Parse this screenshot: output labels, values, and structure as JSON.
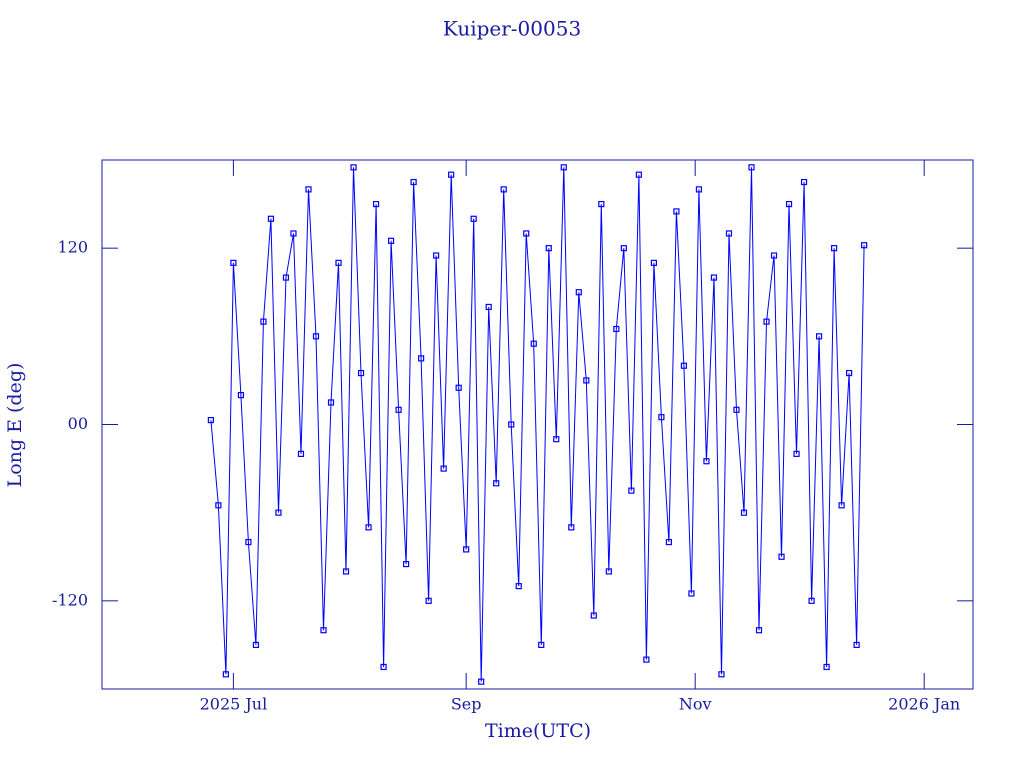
{
  "chart_data": {
    "type": "line",
    "title": "Kuiper-00053",
    "x_label": "Time(UTC)",
    "y_label": "Long E (deg)",
    "xlim": [
      147,
      379
    ],
    "xticks": [
      {
        "value": 182,
        "label": "2025 Jul"
      },
      {
        "value": 244,
        "label": "Sep"
      },
      {
        "value": 305,
        "label": "Nov"
      },
      {
        "value": 366,
        "label": "2026 Jan"
      }
    ],
    "ylim": [
      -180,
      180
    ],
    "yticks": [
      -120,
      {
        "value": 0,
        "label": "00"
      },
      120
    ],
    "x": [
      176,
      178,
      180,
      182,
      184,
      186,
      188,
      190,
      192,
      194,
      196,
      198,
      200,
      202,
      204,
      206,
      208,
      210,
      212,
      214,
      216,
      218,
      220,
      222,
      224,
      226,
      228,
      230,
      232,
      234,
      236,
      238,
      240,
      242,
      244,
      246,
      248,
      250,
      252,
      254,
      256,
      258,
      260,
      262,
      264,
      266,
      268,
      270,
      272,
      274,
      276,
      278,
      280,
      282,
      284,
      286,
      288,
      290,
      292,
      294,
      296,
      298,
      300,
      302,
      304,
      306,
      308,
      310,
      312,
      314,
      316,
      318,
      320,
      322,
      324,
      326,
      328,
      330,
      332,
      334,
      336,
      338,
      340,
      342,
      344,
      346,
      348,
      350
    ],
    "series": [
      {
        "name": "Long E",
        "color": "#0000ff",
        "values": [
          3,
          -55,
          -170,
          110,
          20,
          -80,
          -150,
          70,
          140,
          -60,
          100,
          130,
          -20,
          160,
          60,
          -140,
          15,
          110,
          -100,
          175,
          35,
          -70,
          150,
          -165,
          125,
          10,
          -95,
          165,
          45,
          -120,
          115,
          -30,
          170,
          25,
          -85,
          140,
          -175,
          80,
          -40,
          160,
          0,
          -110,
          130,
          55,
          -150,
          120,
          -10,
          175,
          -70,
          90,
          30,
          -130,
          150,
          -100,
          65,
          120,
          -45,
          170,
          -160,
          110,
          5,
          -80,
          145,
          40,
          -115,
          160,
          -25,
          100,
          -170,
          130,
          10,
          -60,
          175,
          -140,
          70,
          115,
          -90,
          150,
          -20,
          165,
          -120,
          60,
          -165,
          120,
          -55,
          35,
          -150,
          122
        ]
      }
    ]
  }
}
